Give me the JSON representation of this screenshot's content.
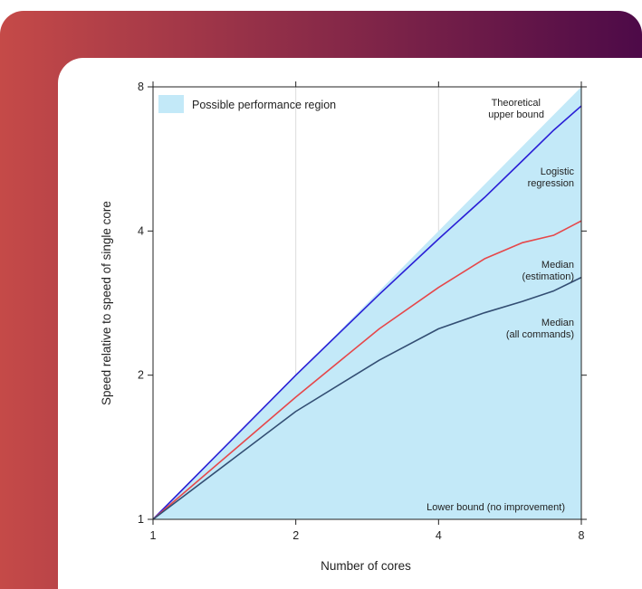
{
  "theme": {
    "gradient_start": "#c54a48",
    "gradient_end": "#4d0a48",
    "card_bg": "#ffffff"
  },
  "chart_data": {
    "type": "area",
    "xlabel": "Number of cores",
    "ylabel": "Speed relative to speed of single core",
    "xscale": "log2",
    "yscale": "log2",
    "xlim": [
      1,
      8
    ],
    "ylim": [
      1,
      8
    ],
    "xticks": [
      1,
      2,
      4,
      8
    ],
    "yticks": [
      1,
      2,
      4,
      8
    ],
    "grid": "vertical",
    "legend": {
      "placement": "top-left",
      "entries": [
        "Possible performance region"
      ]
    },
    "region": {
      "name": "Possible performance region",
      "upper": {
        "x": [
          1,
          8
        ],
        "y": [
          1,
          8
        ]
      },
      "lower": {
        "x": [
          1,
          8
        ],
        "y": [
          1,
          1
        ]
      }
    },
    "series": [
      {
        "name": "Logistic regression",
        "color": "#2a1fd6",
        "x": [
          1,
          2,
          3,
          4,
          5,
          6,
          7,
          8
        ],
        "y": [
          1,
          2.0,
          2.95,
          3.85,
          4.7,
          5.6,
          6.5,
          7.3
        ]
      },
      {
        "name": "Median (estimation)",
        "color": "#e6474a",
        "x": [
          1,
          2,
          3,
          4,
          5,
          6,
          7,
          8
        ],
        "y": [
          1,
          1.8,
          2.5,
          3.05,
          3.5,
          3.78,
          3.92,
          4.2
        ]
      },
      {
        "name": "Median (all commands)",
        "color": "#334e73",
        "x": [
          1,
          2,
          3,
          4,
          5,
          6,
          7,
          8
        ],
        "y": [
          1,
          1.68,
          2.15,
          2.5,
          2.7,
          2.85,
          3.0,
          3.2
        ]
      }
    ],
    "annotations": [
      {
        "line1": "Theoretical",
        "line2": "upper bound"
      },
      {
        "line1": "Logistic",
        "line2": "regression"
      },
      {
        "line1": "Median",
        "line2": "(estimation)"
      },
      {
        "line1": "Median",
        "line2": "(all commands)"
      },
      {
        "line1": "Lower bound (no improvement)",
        "line2": ""
      }
    ]
  }
}
